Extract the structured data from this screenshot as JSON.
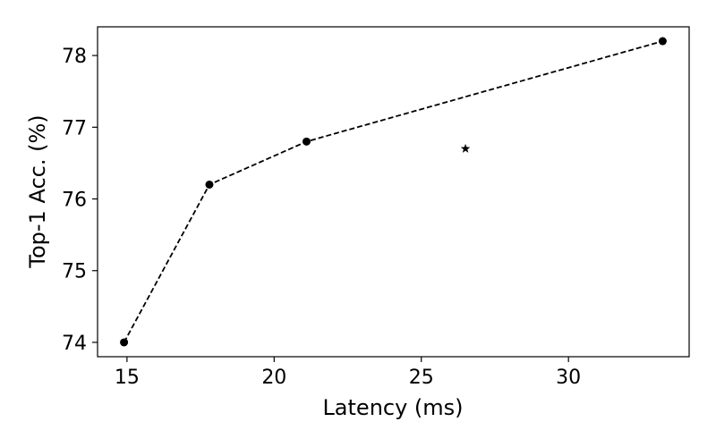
{
  "chart_data": {
    "type": "scatter",
    "title": "",
    "xlabel": "Latency (ms)",
    "ylabel": "Top-1 Acc. (%)",
    "xlim": [
      14,
      34.1
    ],
    "ylim": [
      73.8,
      78.4
    ],
    "xticks": [
      15,
      20,
      25,
      30
    ],
    "yticks": [
      74,
      75,
      76,
      77,
      78
    ],
    "grid": false,
    "legend": "none",
    "series": [
      {
        "marker": "circle",
        "line": "dashed",
        "color": "#000000",
        "points": [
          {
            "x": 14.9,
            "y": 74.0
          },
          {
            "x": 17.8,
            "y": 76.2
          },
          {
            "x": 21.1,
            "y": 76.8
          },
          {
            "x": 33.2,
            "y": 78.2
          }
        ]
      },
      {
        "marker": "star",
        "line": "none",
        "color": "#000000",
        "points": [
          {
            "x": 26.5,
            "y": 76.7
          }
        ]
      }
    ]
  }
}
